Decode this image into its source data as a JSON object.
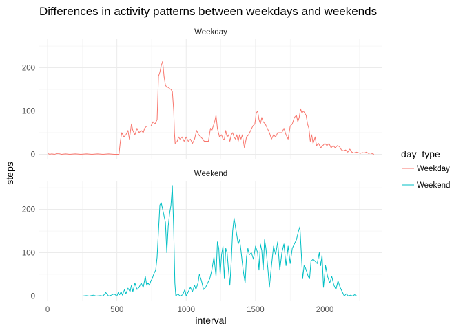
{
  "chart_data": {
    "type": "line",
    "title": "Differences in activity patterns between weekdays and weekends",
    "xlabel": "interval",
    "ylabel": "steps",
    "xlim": [
      -60,
      2415
    ],
    "ylim": [
      -12,
      266
    ],
    "x_ticks": [
      0,
      500,
      1000,
      1500,
      2000
    ],
    "x_tick_labels": [
      "0",
      "500",
      "1000",
      "1500",
      "2000"
    ],
    "y_ticks": [
      0,
      100,
      200
    ],
    "y_tick_labels": [
      "0",
      "100",
      "200"
    ],
    "grid": true,
    "legend": {
      "title": "day_type",
      "position": "right",
      "entries": [
        "Weekday",
        "Weekend"
      ]
    },
    "panels": [
      {
        "strip_label": "Weekday",
        "series_name": "Weekday",
        "color": "#F8766D",
        "points": [
          [
            0,
            2
          ],
          [
            15,
            0
          ],
          [
            30,
            1
          ],
          [
            50,
            0
          ],
          [
            75,
            2
          ],
          [
            100,
            0
          ],
          [
            130,
            1
          ],
          [
            160,
            0
          ],
          [
            200,
            1
          ],
          [
            240,
            0
          ],
          [
            280,
            1
          ],
          [
            320,
            0
          ],
          [
            360,
            1
          ],
          [
            400,
            0
          ],
          [
            440,
            1
          ],
          [
            480,
            0
          ],
          [
            500,
            0
          ],
          [
            515,
            0
          ],
          [
            525,
            30
          ],
          [
            535,
            50
          ],
          [
            550,
            40
          ],
          [
            565,
            45
          ],
          [
            580,
            55
          ],
          [
            590,
            35
          ],
          [
            605,
            70
          ],
          [
            615,
            55
          ],
          [
            630,
            45
          ],
          [
            645,
            60
          ],
          [
            660,
            50
          ],
          [
            675,
            55
          ],
          [
            690,
            50
          ],
          [
            700,
            60
          ],
          [
            715,
            65
          ],
          [
            730,
            65
          ],
          [
            745,
            65
          ],
          [
            760,
            75
          ],
          [
            775,
            70
          ],
          [
            790,
            80
          ],
          [
            800,
            180
          ],
          [
            810,
            190
          ],
          [
            820,
            205
          ],
          [
            830,
            215
          ],
          [
            840,
            180
          ],
          [
            850,
            160
          ],
          [
            860,
            155
          ],
          [
            870,
            155
          ],
          [
            880,
            152
          ],
          [
            890,
            150
          ],
          [
            900,
            145
          ],
          [
            910,
            100
          ],
          [
            915,
            50
          ],
          [
            920,
            25
          ],
          [
            935,
            30
          ],
          [
            945,
            40
          ],
          [
            955,
            35
          ],
          [
            970,
            40
          ],
          [
            985,
            30
          ],
          [
            1000,
            40
          ],
          [
            1015,
            30
          ],
          [
            1030,
            35
          ],
          [
            1045,
            25
          ],
          [
            1060,
            35
          ],
          [
            1075,
            55
          ],
          [
            1090,
            45
          ],
          [
            1105,
            40
          ],
          [
            1120,
            35
          ],
          [
            1130,
            30
          ],
          [
            1145,
            30
          ],
          [
            1160,
            30
          ],
          [
            1175,
            60
          ],
          [
            1185,
            55
          ],
          [
            1195,
            65
          ],
          [
            1205,
            75
          ],
          [
            1215,
            90
          ],
          [
            1225,
            60
          ],
          [
            1240,
            40
          ],
          [
            1255,
            45
          ],
          [
            1265,
            35
          ],
          [
            1275,
            35
          ],
          [
            1285,
            55
          ],
          [
            1295,
            40
          ],
          [
            1305,
            45
          ],
          [
            1315,
            30
          ],
          [
            1325,
            45
          ],
          [
            1335,
            50
          ],
          [
            1345,
            40
          ],
          [
            1355,
            35
          ],
          [
            1365,
            45
          ],
          [
            1375,
            30
          ],
          [
            1385,
            45
          ],
          [
            1395,
            35
          ],
          [
            1405,
            45
          ],
          [
            1420,
            15
          ],
          [
            1435,
            40
          ],
          [
            1450,
            45
          ],
          [
            1465,
            55
          ],
          [
            1480,
            65
          ],
          [
            1495,
            70
          ],
          [
            1505,
            95
          ],
          [
            1515,
            100
          ],
          [
            1525,
            80
          ],
          [
            1535,
            70
          ],
          [
            1545,
            85
          ],
          [
            1555,
            75
          ],
          [
            1570,
            70
          ],
          [
            1585,
            60
          ],
          [
            1600,
            50
          ],
          [
            1615,
            35
          ],
          [
            1630,
            45
          ],
          [
            1645,
            40
          ],
          [
            1660,
            50
          ],
          [
            1675,
            50
          ],
          [
            1690,
            50
          ],
          [
            1705,
            60
          ],
          [
            1720,
            45
          ],
          [
            1735,
            35
          ],
          [
            1750,
            65
          ],
          [
            1765,
            70
          ],
          [
            1780,
            85
          ],
          [
            1795,
            90
          ],
          [
            1805,
            75
          ],
          [
            1815,
            85
          ],
          [
            1825,
            105
          ],
          [
            1835,
            95
          ],
          [
            1845,
            100
          ],
          [
            1855,
            95
          ],
          [
            1865,
            90
          ],
          [
            1875,
            70
          ],
          [
            1885,
            60
          ],
          [
            1895,
            30
          ],
          [
            1905,
            45
          ],
          [
            1915,
            25
          ],
          [
            1930,
            40
          ],
          [
            1940,
            20
          ],
          [
            1955,
            25
          ],
          [
            1970,
            15
          ],
          [
            1985,
            20
          ],
          [
            2000,
            25
          ],
          [
            2015,
            20
          ],
          [
            2030,
            25
          ],
          [
            2045,
            15
          ],
          [
            2060,
            20
          ],
          [
            2075,
            15
          ],
          [
            2090,
            20
          ],
          [
            2105,
            18
          ],
          [
            2120,
            10
          ],
          [
            2135,
            8
          ],
          [
            2150,
            10
          ],
          [
            2165,
            5
          ],
          [
            2180,
            12
          ],
          [
            2195,
            5
          ],
          [
            2210,
            3
          ],
          [
            2225,
            5
          ],
          [
            2240,
            4
          ],
          [
            2255,
            2
          ],
          [
            2270,
            4
          ],
          [
            2285,
            3
          ],
          [
            2300,
            5
          ],
          [
            2315,
            2
          ],
          [
            2330,
            3
          ],
          [
            2345,
            1
          ],
          [
            2355,
            0
          ]
        ]
      },
      {
        "strip_label": "Weekend",
        "series_name": "Weekend",
        "color": "#00BFC4",
        "points": [
          [
            0,
            0
          ],
          [
            50,
            0
          ],
          [
            100,
            0
          ],
          [
            150,
            0
          ],
          [
            200,
            0
          ],
          [
            250,
            0
          ],
          [
            280,
            1
          ],
          [
            300,
            0
          ],
          [
            330,
            2
          ],
          [
            350,
            0
          ],
          [
            380,
            1
          ],
          [
            400,
            0
          ],
          [
            420,
            8
          ],
          [
            440,
            0
          ],
          [
            460,
            2
          ],
          [
            480,
            5
          ],
          [
            500,
            0
          ],
          [
            510,
            8
          ],
          [
            520,
            3
          ],
          [
            530,
            10
          ],
          [
            540,
            2
          ],
          [
            555,
            15
          ],
          [
            565,
            5
          ],
          [
            580,
            18
          ],
          [
            595,
            10
          ],
          [
            605,
            25
          ],
          [
            615,
            10
          ],
          [
            630,
            30
          ],
          [
            645,
            15
          ],
          [
            660,
            20
          ],
          [
            675,
            30
          ],
          [
            690,
            20
          ],
          [
            705,
            45
          ],
          [
            715,
            25
          ],
          [
            725,
            30
          ],
          [
            735,
            25
          ],
          [
            745,
            35
          ],
          [
            755,
            40
          ],
          [
            765,
            50
          ],
          [
            780,
            60
          ],
          [
            790,
            90
          ],
          [
            800,
            150
          ],
          [
            810,
            210
          ],
          [
            820,
            215
          ],
          [
            830,
            200
          ],
          [
            840,
            185
          ],
          [
            850,
            170
          ],
          [
            860,
            100
          ],
          [
            870,
            160
          ],
          [
            880,
            190
          ],
          [
            890,
            210
          ],
          [
            900,
            255
          ],
          [
            910,
            150
          ],
          [
            918,
            30
          ],
          [
            925,
            0
          ],
          [
            940,
            5
          ],
          [
            955,
            0
          ],
          [
            975,
            3
          ],
          [
            990,
            15
          ],
          [
            1000,
            0
          ],
          [
            1015,
            10
          ],
          [
            1030,
            20
          ],
          [
            1045,
            10
          ],
          [
            1060,
            25
          ],
          [
            1070,
            15
          ],
          [
            1085,
            30
          ],
          [
            1095,
            50
          ],
          [
            1110,
            35
          ],
          [
            1125,
            15
          ],
          [
            1140,
            20
          ],
          [
            1155,
            30
          ],
          [
            1170,
            40
          ],
          [
            1185,
            60
          ],
          [
            1200,
            90
          ],
          [
            1215,
            45
          ],
          [
            1225,
            125
          ],
          [
            1235,
            110
          ],
          [
            1245,
            50
          ],
          [
            1255,
            95
          ],
          [
            1265,
            115
          ],
          [
            1275,
            40
          ],
          [
            1285,
            110
          ],
          [
            1295,
            100
          ],
          [
            1305,
            60
          ],
          [
            1315,
            25
          ],
          [
            1325,
            80
          ],
          [
            1335,
            150
          ],
          [
            1345,
            180
          ],
          [
            1355,
            160
          ],
          [
            1365,
            140
          ],
          [
            1375,
            120
          ],
          [
            1385,
            130
          ],
          [
            1395,
            105
          ],
          [
            1405,
            75
          ],
          [
            1415,
            50
          ],
          [
            1425,
            30
          ],
          [
            1435,
            90
          ],
          [
            1445,
            110
          ],
          [
            1455,
            95
          ],
          [
            1470,
            100
          ],
          [
            1485,
            85
          ],
          [
            1500,
            115
          ],
          [
            1515,
            100
          ],
          [
            1525,
            60
          ],
          [
            1535,
            120
          ],
          [
            1545,
            105
          ],
          [
            1555,
            60
          ],
          [
            1565,
            130
          ],
          [
            1575,
            110
          ],
          [
            1590,
            60
          ],
          [
            1600,
            20
          ],
          [
            1615,
            70
          ],
          [
            1630,
            115
          ],
          [
            1645,
            95
          ],
          [
            1660,
            125
          ],
          [
            1675,
            60
          ],
          [
            1690,
            100
          ],
          [
            1705,
            120
          ],
          [
            1720,
            70
          ],
          [
            1735,
            115
          ],
          [
            1750,
            75
          ],
          [
            1765,
            110
          ],
          [
            1780,
            120
          ],
          [
            1795,
            130
          ],
          [
            1810,
            150
          ],
          [
            1820,
            160
          ],
          [
            1830,
            100
          ],
          [
            1840,
            40
          ],
          [
            1850,
            70
          ],
          [
            1860,
            65
          ],
          [
            1870,
            55
          ],
          [
            1880,
            45
          ],
          [
            1890,
            40
          ],
          [
            1900,
            80
          ],
          [
            1915,
            85
          ],
          [
            1930,
            80
          ],
          [
            1945,
            75
          ],
          [
            1960,
            100
          ],
          [
            1970,
            70
          ],
          [
            1980,
            95
          ],
          [
            1990,
            20
          ],
          [
            2005,
            70
          ],
          [
            2020,
            45
          ],
          [
            2035,
            30
          ],
          [
            2050,
            45
          ],
          [
            2065,
            25
          ],
          [
            2080,
            15
          ],
          [
            2095,
            35
          ],
          [
            2110,
            20
          ],
          [
            2125,
            10
          ],
          [
            2140,
            0
          ],
          [
            2155,
            5
          ],
          [
            2170,
            0
          ],
          [
            2185,
            2
          ],
          [
            2200,
            0
          ],
          [
            2215,
            3
          ],
          [
            2230,
            0
          ],
          [
            2250,
            0
          ],
          [
            2300,
            0
          ],
          [
            2355,
            0
          ]
        ]
      }
    ]
  }
}
